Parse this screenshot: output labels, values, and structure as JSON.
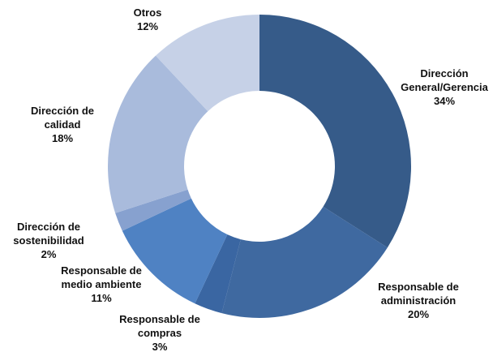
{
  "chart_data": {
    "type": "donut",
    "categories": [
      "Dirección General/Gerencia",
      "Responsable de administración",
      "Responsable de compras",
      "Responsable de medio ambiente",
      "Dirección de sostenibilidad",
      "Dirección de calidad",
      "Otros"
    ],
    "values": [
      34,
      20,
      3,
      11,
      2,
      18,
      12
    ],
    "value_labels": [
      "34%",
      "20%",
      "3%",
      "11%",
      "2%",
      "18%",
      "12%"
    ],
    "colors": [
      "#365b89",
      "#3f69a0",
      "#3a66a2",
      "#4f82c3",
      "#87a1cf",
      "#a9bbdc",
      "#c6d1e7"
    ]
  }
}
